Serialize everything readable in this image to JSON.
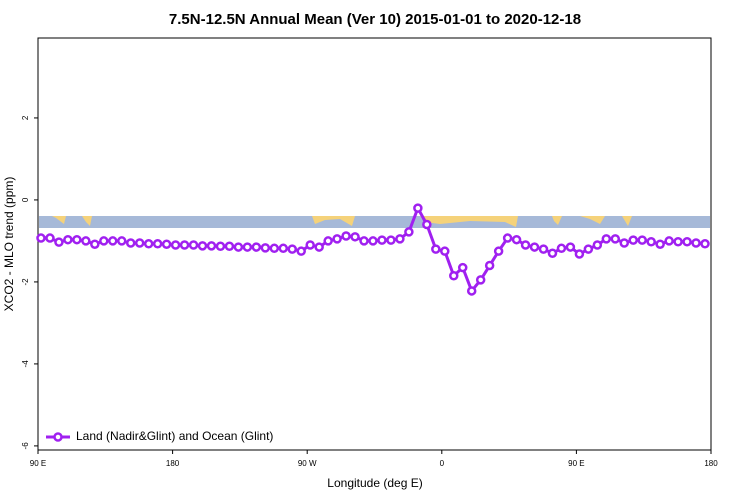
{
  "chart_data": {
    "type": "line",
    "title": "7.5N-12.5N Annual Mean (Ver 10)   2015-01-01 to 2020-12-18",
    "x_label": "Longitude (deg E)",
    "y_label": "XCO2 - MLO trend (ppm)",
    "xlim": [
      90,
      540
    ],
    "ylim": [
      -6.1,
      3.95
    ],
    "xticks": [
      {
        "value": 90,
        "label": "90 E"
      },
      180,
      {
        "value": 270,
        "label": "90 W"
      },
      {
        "value": 360,
        "label": "0"
      },
      {
        "value": 450,
        "label": "90 E"
      },
      {
        "value": 540,
        "label": "180"
      }
    ],
    "yticks": [
      2,
      0,
      -2,
      -4,
      -6
    ],
    "legend": "bottom-left",
    "x": [
      92,
      98,
      104,
      110,
      116,
      122,
      128,
      134,
      140,
      146,
      152,
      158,
      164,
      170,
      176,
      182,
      188,
      194,
      200,
      206,
      212,
      218,
      224,
      230,
      236,
      242,
      248,
      254,
      260,
      266,
      272,
      278,
      284,
      290,
      296,
      302,
      308,
      314,
      320,
      326,
      332,
      338,
      344,
      350,
      356,
      362,
      368,
      374,
      380,
      386,
      392,
      398,
      404,
      410,
      416,
      422,
      428,
      434,
      440,
      446,
      452,
      458,
      464,
      470,
      476,
      482,
      488,
      494,
      500,
      506,
      512,
      518,
      524,
      530,
      536
    ],
    "series": [
      {
        "name": "Land (Nadir&Glint) and Ocean (Glint)",
        "color": "#a020f0",
        "values": [
          -0.93,
          -0.93,
          -1.03,
          -0.97,
          -0.97,
          -1.0,
          -1.08,
          -1.0,
          -1.0,
          -1.0,
          -1.05,
          -1.05,
          -1.07,
          -1.07,
          -1.08,
          -1.1,
          -1.1,
          -1.1,
          -1.12,
          -1.12,
          -1.13,
          -1.13,
          -1.15,
          -1.15,
          -1.15,
          -1.17,
          -1.18,
          -1.18,
          -1.2,
          -1.25,
          -1.1,
          -1.15,
          -1.0,
          -0.95,
          -0.88,
          -0.9,
          -1.0,
          -1.0,
          -0.98,
          -0.98,
          -0.95,
          -0.78,
          -0.2,
          -0.6,
          -1.2,
          -1.25,
          -1.85,
          -1.65,
          -2.22,
          -1.95,
          -1.6,
          -1.25,
          -0.93,
          -0.97,
          -1.1,
          -1.15,
          -1.2,
          -1.3,
          -1.18,
          -1.15,
          -1.32,
          -1.2,
          -1.1,
          -0.95,
          -0.95,
          -1.05,
          -0.98,
          -0.98,
          -1.02,
          -1.08,
          -1.0,
          -1.02,
          -1.02,
          -1.05,
          -1.07
        ]
      }
    ]
  }
}
